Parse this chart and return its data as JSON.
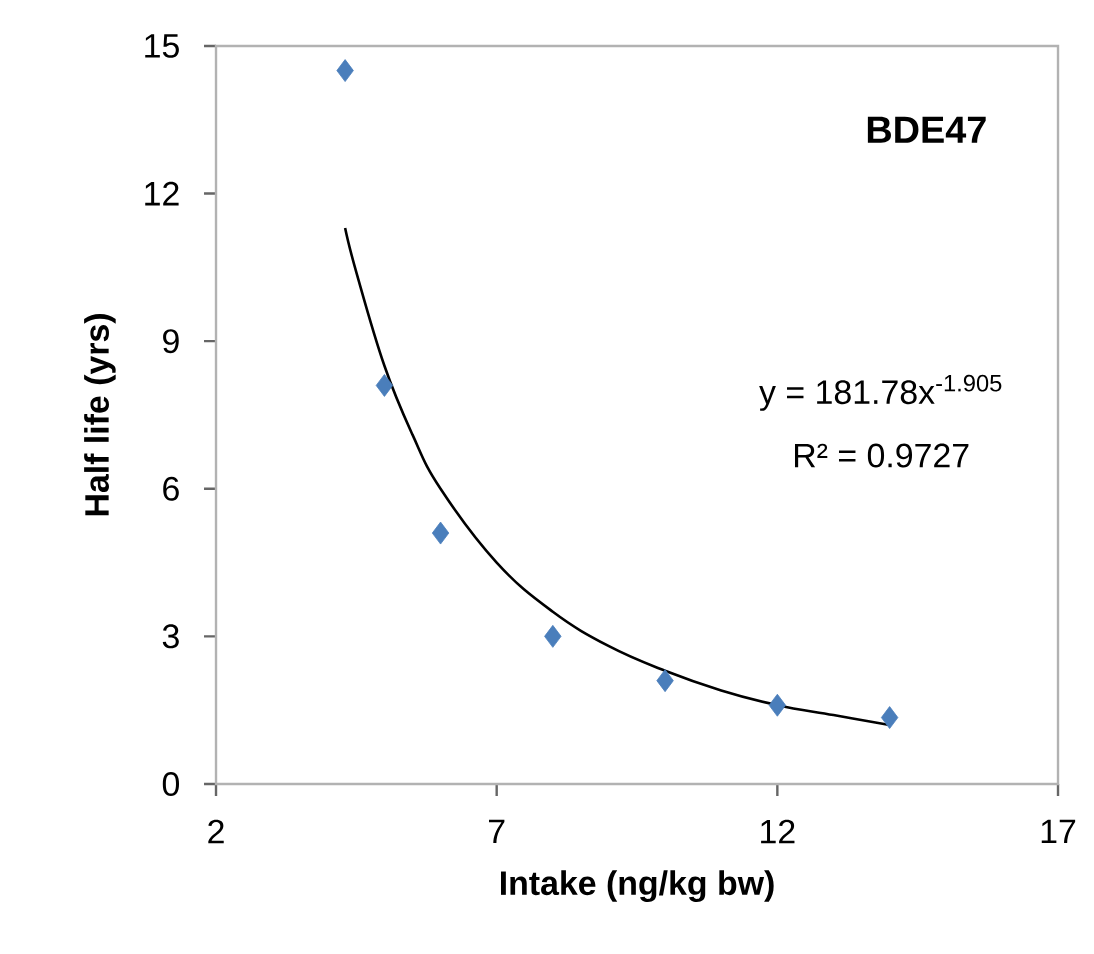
{
  "chart_data": {
    "type": "scatter",
    "title": "BDE47",
    "xlabel": "Intake (ng/kg bw)",
    "ylabel": "Half life (yrs)",
    "xlim": [
      2,
      17
    ],
    "ylim": [
      0,
      15
    ],
    "xticks": [
      2,
      7,
      12,
      17
    ],
    "yticks": [
      0,
      3,
      6,
      9,
      12,
      15
    ],
    "grid": false,
    "marker": "diamond",
    "series": [
      {
        "color": "#4a7ebb",
        "x": [
          4.3,
          5.0,
          6.0,
          8.0,
          10.0,
          12.0,
          14.0
        ],
        "values": [
          14.5,
          8.1,
          5.1,
          3.0,
          2.1,
          1.6,
          1.35
        ]
      },
      {
        "type": "line",
        "color": "#000000",
        "marker": "none",
        "line_style": "solid",
        "x": [
          4.3,
          4.5,
          5,
          5.5,
          6,
          7,
          8,
          9,
          10,
          11,
          12,
          13,
          14
        ],
        "values": [
          11.3,
          10.4,
          8.5,
          7.1,
          6.0,
          4.5,
          3.5,
          2.8,
          2.3,
          1.9,
          1.6,
          1.4,
          1.2
        ]
      }
    ],
    "annotations": [
      "y = 181.78x$^{-1.905}$",
      "R² = 0.9727"
    ]
  }
}
